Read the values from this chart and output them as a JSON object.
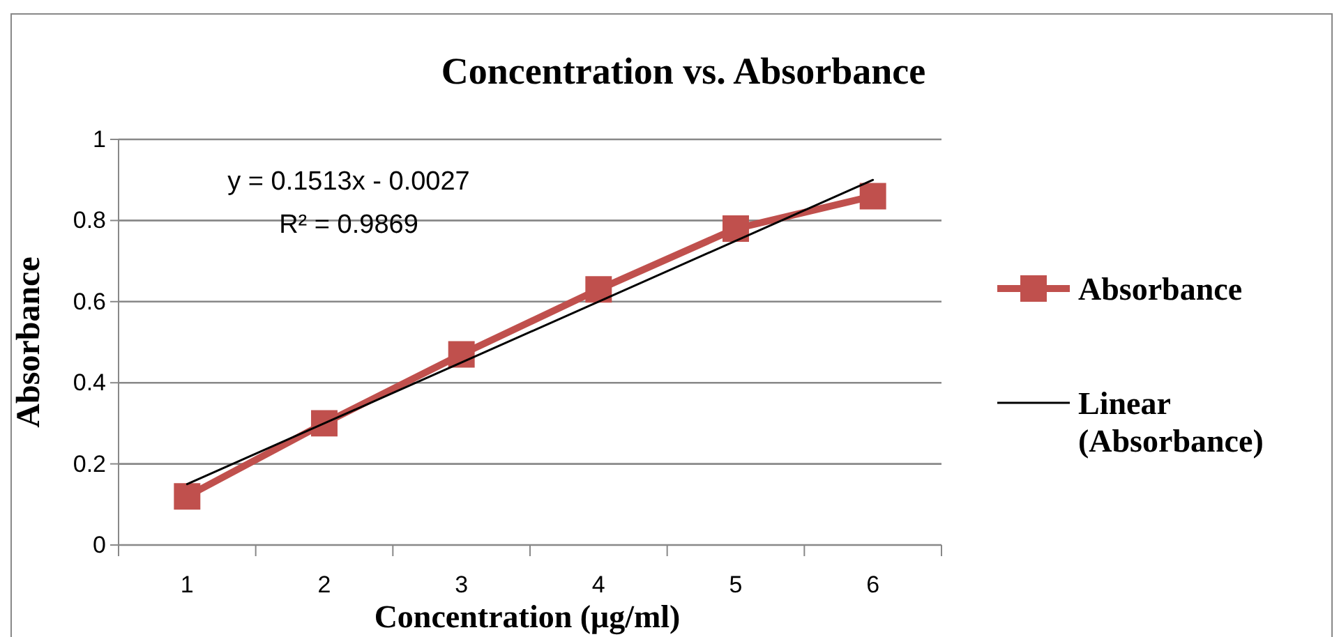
{
  "chart_data": {
    "type": "line",
    "title": "Concentration vs. Absorbance",
    "xlabel": "Concentration (μg/ml)",
    "ylabel": "Absorbance",
    "categories": [
      "1",
      "2",
      "3",
      "4",
      "5",
      "6"
    ],
    "series": [
      {
        "name": "Absorbance",
        "color": "#c0504d",
        "values": [
          0.12,
          0.3,
          0.47,
          0.63,
          0.78,
          0.86
        ],
        "marker": "square"
      },
      {
        "name": "Linear (Absorbance)",
        "color": "#000000",
        "x": [
          "1",
          "6"
        ],
        "values": [
          0.15,
          0.9
        ],
        "marker": "none"
      }
    ],
    "ylim": [
      0,
      1
    ],
    "yticks": [
      0,
      0.2,
      0.4,
      0.6,
      0.8,
      1
    ],
    "grid": "y",
    "legend": "right",
    "annotations": [
      "y = 0.1513x - 0.0027",
      "R² = 0.9869"
    ]
  }
}
